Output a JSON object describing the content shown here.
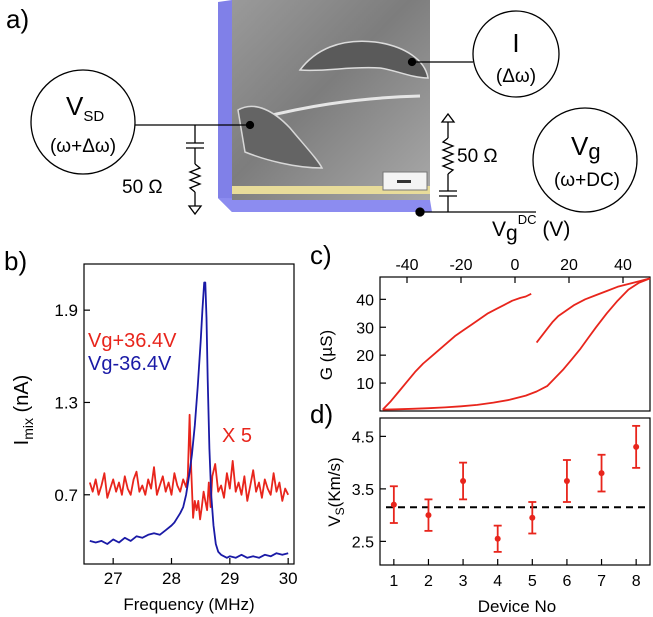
{
  "panels": {
    "a": "a)",
    "b": "b)",
    "c": "c)",
    "d": "d)"
  },
  "schematic": {
    "vsd_main": "V",
    "vsd_sub": "SD",
    "vsd_freq": "(ω+Δω)",
    "i_main": "I",
    "i_freq": "(Δω)",
    "vg_main": "V",
    "vg_sub": "g",
    "vg_freq": "(ω+DC)",
    "res_left": "50 Ω",
    "res_right": "50 Ω"
  },
  "chart_data": [
    {
      "id": "b",
      "type": "line",
      "xlabel": "Frequency (MHz)",
      "ylabel_main": "I",
      "ylabel_sub": "mix",
      "ylabel_unit": " (nA)",
      "xlim": [
        26.5,
        30.1
      ],
      "ylim": [
        0.25,
        2.2
      ],
      "xticks": [
        27,
        28,
        29,
        30
      ],
      "yticks": [
        0.7,
        1.3,
        1.9
      ],
      "xtick_labels": [
        "27",
        "28",
        "29",
        "30"
      ],
      "ytick_labels": [
        "0.7",
        "1.3",
        "1.9"
      ],
      "legend": [
        "Vg+36.4V",
        "Vg-36.4V"
      ],
      "annotation": "X 5",
      "colors": {
        "red": "#e8251c",
        "blue": "#1a1aa6"
      },
      "series": [
        {
          "name": "Vg+36.4V",
          "color": "#e8251c",
          "x": [
            26.6,
            26.65,
            26.7,
            26.75,
            26.8,
            26.85,
            26.9,
            26.95,
            27.0,
            27.05,
            27.1,
            27.15,
            27.2,
            27.25,
            27.3,
            27.35,
            27.4,
            27.45,
            27.5,
            27.55,
            27.6,
            27.65,
            27.7,
            27.75,
            27.8,
            27.85,
            27.9,
            27.95,
            28.0,
            28.05,
            28.1,
            28.15,
            28.2,
            28.25,
            28.28,
            28.31,
            28.34,
            28.37,
            28.4,
            28.43,
            28.46,
            28.49,
            28.52,
            28.55,
            28.58,
            28.61,
            28.64,
            28.67,
            28.7,
            28.75,
            28.8,
            28.85,
            28.9,
            28.95,
            29.0,
            29.05,
            29.1,
            29.15,
            29.2,
            29.25,
            29.3,
            29.35,
            29.4,
            29.45,
            29.5,
            29.55,
            29.6,
            29.65,
            29.7,
            29.75,
            29.8,
            29.85,
            29.9,
            29.95,
            30.0
          ],
          "y": [
            0.78,
            0.72,
            0.8,
            0.7,
            0.76,
            0.84,
            0.68,
            0.74,
            0.8,
            0.72,
            0.78,
            0.7,
            0.82,
            0.74,
            0.7,
            0.8,
            0.85,
            0.72,
            0.76,
            0.7,
            0.8,
            0.74,
            0.88,
            0.7,
            0.76,
            0.82,
            0.72,
            0.78,
            0.7,
            0.84,
            0.76,
            0.72,
            0.8,
            0.75,
            0.82,
            1.22,
            0.85,
            0.55,
            0.66,
            0.6,
            0.66,
            0.54,
            0.62,
            0.72,
            0.66,
            0.6,
            0.78,
            0.62,
            0.82,
            0.9,
            0.72,
            0.76,
            0.68,
            0.84,
            0.74,
            0.92,
            0.72,
            0.78,
            0.7,
            0.82,
            0.66,
            0.76,
            0.86,
            0.72,
            0.78,
            0.68,
            0.8,
            0.74,
            0.7,
            0.84,
            0.72,
            0.78,
            0.66,
            0.74,
            0.7
          ]
        },
        {
          "name": "Vg-36.4V",
          "color": "#1a1aa6",
          "x": [
            26.6,
            26.7,
            26.8,
            26.9,
            27.0,
            27.1,
            27.2,
            27.3,
            27.4,
            27.5,
            27.6,
            27.7,
            27.8,
            27.9,
            28.0,
            28.05,
            28.1,
            28.15,
            28.2,
            28.25,
            28.3,
            28.35,
            28.4,
            28.45,
            28.5,
            28.53,
            28.56,
            28.58,
            28.6,
            28.62,
            28.65,
            28.68,
            28.72,
            28.76,
            28.8,
            28.85,
            28.9,
            28.95,
            29.0,
            29.1,
            29.2,
            29.3,
            29.4,
            29.5,
            29.6,
            29.7,
            29.8,
            29.9,
            30.0
          ],
          "y": [
            0.4,
            0.39,
            0.4,
            0.38,
            0.41,
            0.39,
            0.42,
            0.4,
            0.43,
            0.42,
            0.44,
            0.45,
            0.44,
            0.47,
            0.5,
            0.52,
            0.55,
            0.58,
            0.62,
            0.7,
            0.82,
            0.96,
            1.15,
            1.4,
            1.7,
            1.9,
            2.08,
            2.08,
            1.85,
            1.45,
            1.0,
            0.7,
            0.5,
            0.38,
            0.33,
            0.31,
            0.3,
            0.29,
            0.3,
            0.29,
            0.31,
            0.29,
            0.3,
            0.29,
            0.31,
            0.3,
            0.32,
            0.31,
            0.32
          ]
        }
      ]
    },
    {
      "id": "c",
      "type": "line",
      "xlabel_main": "V",
      "xlabel_sub": "g",
      "xlabel_sup": "DC",
      "xlabel_unit": " (V)",
      "ylabel": "G (µS)",
      "xlim": [
        -50,
        50
      ],
      "ylim": [
        0,
        48
      ],
      "xticks": [
        -40,
        -20,
        0,
        20,
        40
      ],
      "xtick_labels": [
        "-40",
        "-20",
        "0",
        "20",
        "40"
      ],
      "yticks": [
        10,
        20,
        30,
        40
      ],
      "ytick_labels": [
        "10",
        "20",
        "30",
        "40"
      ],
      "series": [
        {
          "name": "upper sweep left",
          "color": "#e8251c",
          "x": [
            -49,
            -46,
            -43,
            -40,
            -37,
            -34,
            -31,
            -28,
            -25,
            -22,
            -19,
            -16,
            -13,
            -10,
            -7,
            -4,
            -1,
            2,
            4,
            6
          ],
          "y": [
            0.5,
            3.5,
            7,
            10.5,
            14,
            17,
            19.5,
            22,
            24.5,
            27,
            29,
            31,
            33,
            35,
            36.5,
            38,
            39.5,
            40.5,
            41,
            42
          ]
        },
        {
          "name": "upper sweep right",
          "color": "#e8251c",
          "x": [
            8,
            10,
            12,
            14,
            16,
            19,
            22,
            26,
            30,
            34,
            38,
            42,
            46,
            50
          ],
          "y": [
            24.5,
            27,
            29.5,
            32,
            34,
            36,
            38,
            40,
            41.5,
            43,
            44.5,
            45.5,
            46.5,
            47.5
          ]
        },
        {
          "name": "lower sweep",
          "color": "#e8251c",
          "x": [
            -49,
            -44,
            -38,
            -32,
            -26,
            -20,
            -14,
            -8,
            -2,
            4,
            8,
            12,
            15,
            18,
            21,
            24,
            27,
            30,
            34,
            38,
            42,
            46,
            50
          ],
          "y": [
            0.5,
            0.6,
            0.8,
            1,
            1.3,
            1.7,
            2.2,
            3,
            4,
            5.5,
            7,
            9,
            12,
            15,
            18.5,
            22,
            26,
            30,
            35,
            39.5,
            43.5,
            46,
            47.5
          ]
        }
      ]
    },
    {
      "id": "d",
      "type": "scatter",
      "xlabel": "Device No",
      "ylabel_main": "V",
      "ylabel_sub": "S",
      "ylabel_unit": "(Km/s)",
      "xlim": [
        0.6,
        8.4
      ],
      "ylim": [
        2.05,
        4.85
      ],
      "xticks": [
        1,
        2,
        3,
        4,
        5,
        6,
        7,
        8
      ],
      "xtick_labels": [
        "1",
        "2",
        "3",
        "4",
        "5",
        "6",
        "7",
        "8"
      ],
      "yticks": [
        2.5,
        3.5,
        4.5
      ],
      "ytick_labels": [
        "2.5",
        "3.5",
        "4.5"
      ],
      "reference_line": 3.15,
      "color": "#e8251c",
      "points": [
        {
          "x": 1,
          "y": 3.2,
          "err": 0.35
        },
        {
          "x": 2,
          "y": 3.0,
          "err": 0.3
        },
        {
          "x": 3,
          "y": 3.65,
          "err": 0.35
        },
        {
          "x": 4,
          "y": 2.55,
          "err": 0.25
        },
        {
          "x": 5,
          "y": 2.95,
          "err": 0.3
        },
        {
          "x": 6,
          "y": 3.65,
          "err": 0.4
        },
        {
          "x": 7,
          "y": 3.8,
          "err": 0.35
        },
        {
          "x": 8,
          "y": 4.3,
          "err": 0.4
        }
      ]
    }
  ]
}
